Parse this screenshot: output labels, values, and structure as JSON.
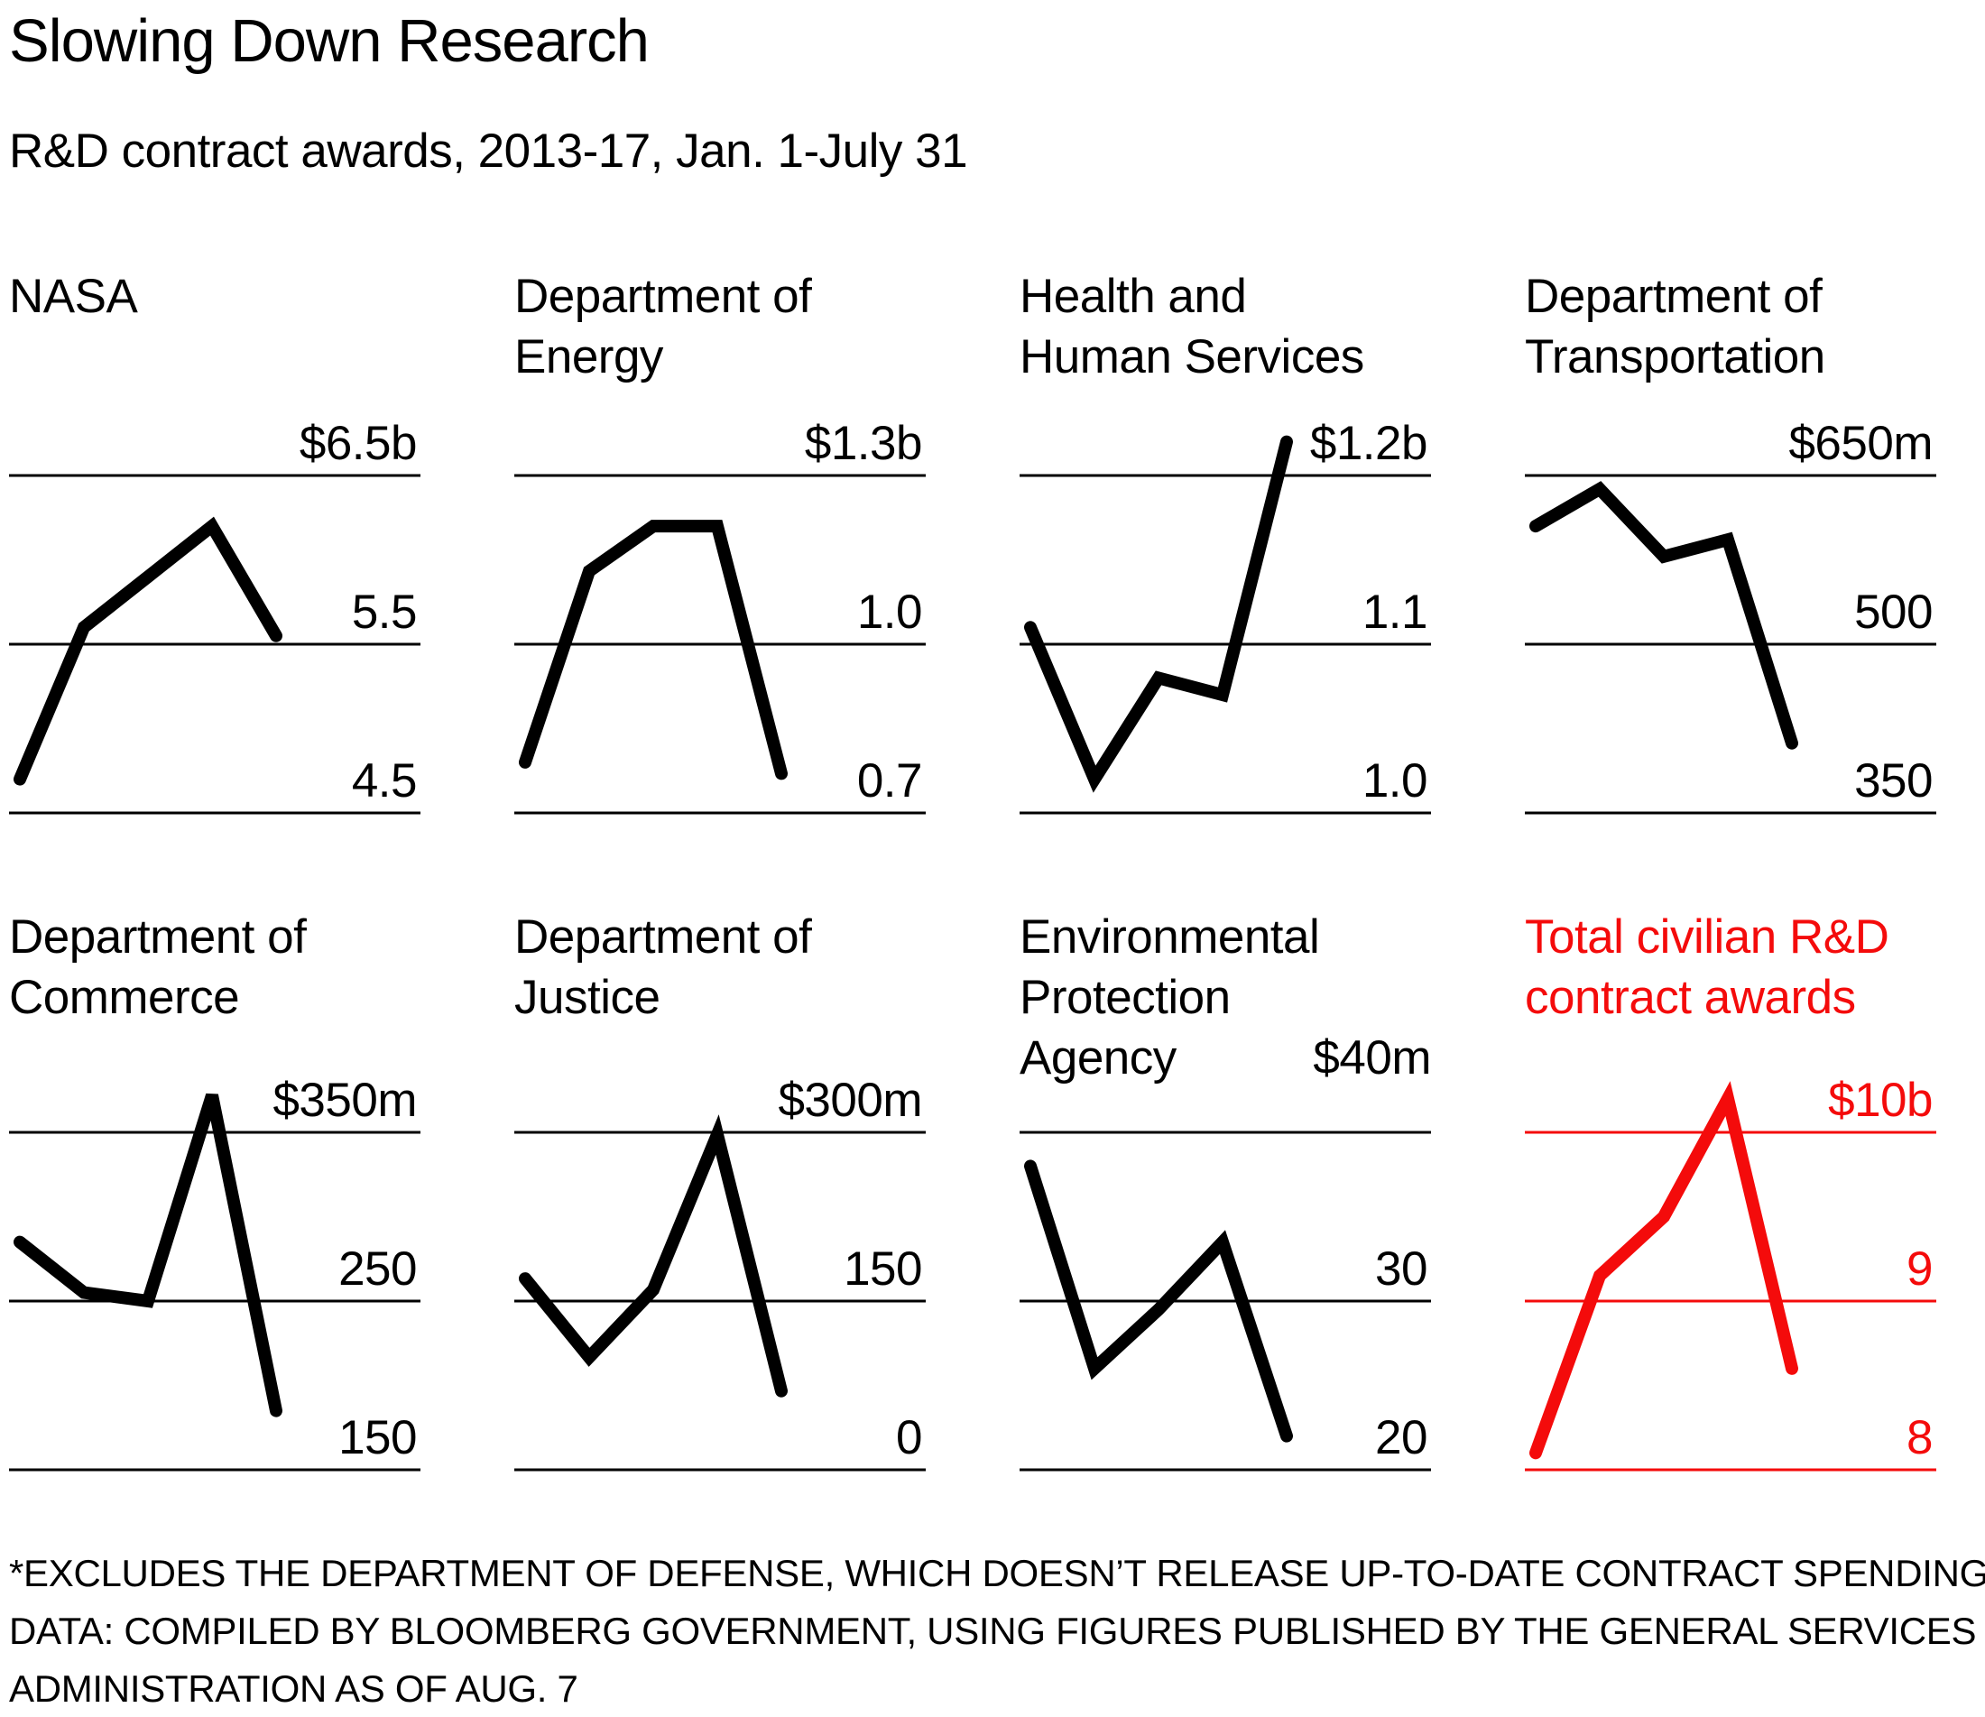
{
  "header": {
    "title": "Slowing Down Research",
    "subtitle": "R&D contract awards, 2013-17, Jan. 1-July 31"
  },
  "colors": {
    "black": "#000000",
    "red": "#f40b0b",
    "background": "#ffffff"
  },
  "footnote": {
    "line1": "*EXCLUDES THE DEPARTMENT OF DEFENSE, WHICH DOESN’T RELEASE UP-TO-DATE CONTRACT SPENDING",
    "line2": "DATA: COMPILED BY BLOOMBERG GOVERNMENT, USING FIGURES PUBLISHED BY THE GENERAL SERVICES",
    "line3": "ADMINISTRATION AS OF AUG. 7"
  },
  "chart_data": [
    {
      "type": "line",
      "id": "nasa",
      "title": "NASA",
      "title_lines": [
        "NASA"
      ],
      "x": [
        2013,
        2014,
        2015,
        2016,
        2017
      ],
      "values": [
        4.7,
        5.6,
        5.9,
        6.2,
        5.55
      ],
      "unit": "billions of dollars",
      "gridlines": {
        "values": [
          6.5,
          5.5,
          4.5
        ],
        "labels": [
          "$6.5b",
          "5.5",
          "4.5"
        ]
      },
      "color": "#000000",
      "row": 0,
      "col": 0,
      "top_label_inline": false,
      "legend_position": "right-axis-labels",
      "grid": true
    },
    {
      "type": "line",
      "id": "energy",
      "title": "Department of Energy",
      "title_lines": [
        "Department of",
        "Energy"
      ],
      "x": [
        2013,
        2014,
        2015,
        2016,
        2017
      ],
      "values": [
        0.79,
        1.13,
        1.21,
        1.21,
        0.77
      ],
      "unit": "billions of dollars",
      "gridlines": {
        "values": [
          1.3,
          1.0,
          0.7
        ],
        "labels": [
          "$1.3b",
          "1.0",
          "0.7"
        ]
      },
      "color": "#000000",
      "row": 0,
      "col": 1,
      "top_label_inline": false,
      "legend_position": "right-axis-labels",
      "grid": true
    },
    {
      "type": "line",
      "id": "hhs",
      "title": "Health and Human Services",
      "title_lines": [
        "Health and",
        "Human Services"
      ],
      "x": [
        2013,
        2014,
        2015,
        2016,
        2017
      ],
      "values": [
        1.11,
        1.02,
        1.08,
        1.07,
        1.22
      ],
      "unit": "billions of dollars",
      "gridlines": {
        "values": [
          1.2,
          1.1,
          1.0
        ],
        "labels": [
          "$1.2b",
          "1.1",
          "1.0"
        ]
      },
      "color": "#000000",
      "row": 0,
      "col": 2,
      "top_label_inline": false,
      "legend_position": "right-axis-labels",
      "grid": true
    },
    {
      "type": "line",
      "id": "transportation",
      "title": "Department of Transportation",
      "title_lines": [
        "Department of",
        "Transportation"
      ],
      "x": [
        2013,
        2014,
        2015,
        2016,
        2017
      ],
      "values": [
        605,
        638,
        578,
        593,
        412
      ],
      "unit": "millions of dollars",
      "gridlines": {
        "values": [
          650,
          500,
          350
        ],
        "labels": [
          "$650m",
          "500",
          "350"
        ]
      },
      "color": "#000000",
      "row": 0,
      "col": 3,
      "top_label_inline": false,
      "legend_position": "right-axis-labels",
      "grid": true
    },
    {
      "type": "line",
      "id": "commerce",
      "title": "Department of Commerce",
      "title_lines": [
        "Department of",
        "Commerce"
      ],
      "x": [
        2013,
        2014,
        2015,
        2016,
        2017
      ],
      "values": [
        285,
        255,
        250,
        372,
        185
      ],
      "unit": "millions of dollars",
      "gridlines": {
        "values": [
          350,
          250,
          150
        ],
        "labels": [
          "$350m",
          "250",
          "150"
        ]
      },
      "color": "#000000",
      "row": 1,
      "col": 0,
      "top_label_inline": false,
      "legend_position": "right-axis-labels",
      "grid": true
    },
    {
      "type": "line",
      "id": "justice",
      "title": "Department of Justice",
      "title_lines": [
        "Department of",
        "Justice"
      ],
      "x": [
        2013,
        2014,
        2015,
        2016,
        2017
      ],
      "values": [
        170,
        100,
        160,
        298,
        70
      ],
      "unit": "millions of dollars",
      "gridlines": {
        "values": [
          300,
          150,
          0
        ],
        "labels": [
          "$300m",
          "150",
          "0"
        ]
      },
      "color": "#000000",
      "row": 1,
      "col": 1,
      "top_label_inline": false,
      "legend_position": "right-axis-labels",
      "grid": true
    },
    {
      "type": "line",
      "id": "epa",
      "title": "Environmental Protection Agency",
      "title_lines": [
        "Environmental",
        "Protection",
        "Agency"
      ],
      "x": [
        2013,
        2014,
        2015,
        2016,
        2017
      ],
      "values": [
        38,
        26,
        29.5,
        33.5,
        22
      ],
      "unit": "millions of dollars",
      "gridlines": {
        "values": [
          40,
          30,
          20
        ],
        "labels": [
          "$40m",
          "30",
          "20"
        ]
      },
      "color": "#000000",
      "row": 1,
      "col": 2,
      "top_label_inline": true,
      "legend_position": "right-axis-labels",
      "grid": true
    },
    {
      "type": "line",
      "id": "total-civilian",
      "title": "Total civilian R&D contract awards",
      "title_lines": [
        "Total civilian R&D",
        "contract awards"
      ],
      "x": [
        2013,
        2014,
        2015,
        2016,
        2017
      ],
      "values": [
        8.1,
        9.15,
        9.5,
        10.2,
        8.6
      ],
      "unit": "billions of dollars",
      "gridlines": {
        "values": [
          10,
          9,
          8
        ],
        "labels": [
          "$10b",
          "9",
          "8"
        ]
      },
      "color": "#f40b0b",
      "row": 1,
      "col": 3,
      "top_label_inline": false,
      "legend_position": "right-axis-labels",
      "grid": true
    }
  ],
  "layout_hints": {
    "grid": "4 columns x 2 rows of small multiples",
    "highlight_series": "total-civilian"
  }
}
